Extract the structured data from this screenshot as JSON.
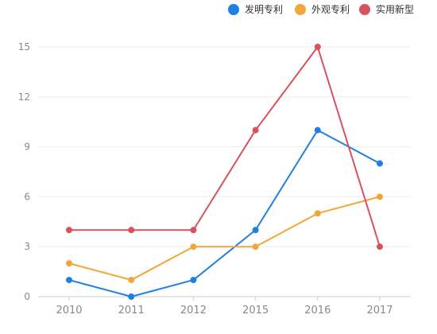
{
  "chart_data": {
    "type": "line",
    "categories": [
      "2010",
      "2011",
      "2012",
      "2015",
      "2016",
      "2017"
    ],
    "ylim": [
      0,
      15
    ],
    "yticks": [
      0,
      3,
      6,
      9,
      12,
      15
    ],
    "grid": true,
    "legend_position": "top-right",
    "series": [
      {
        "name": "发明专利",
        "color": "#1f7fe3",
        "values": [
          1,
          0,
          1,
          4,
          10,
          8
        ]
      },
      {
        "name": "外观专利",
        "color": "#f2a53a",
        "values": [
          2,
          1,
          3,
          3,
          5,
          6
        ]
      },
      {
        "name": "实用新型",
        "color": "#d9515b",
        "values": [
          4,
          4,
          4,
          10,
          15,
          3
        ]
      }
    ]
  }
}
